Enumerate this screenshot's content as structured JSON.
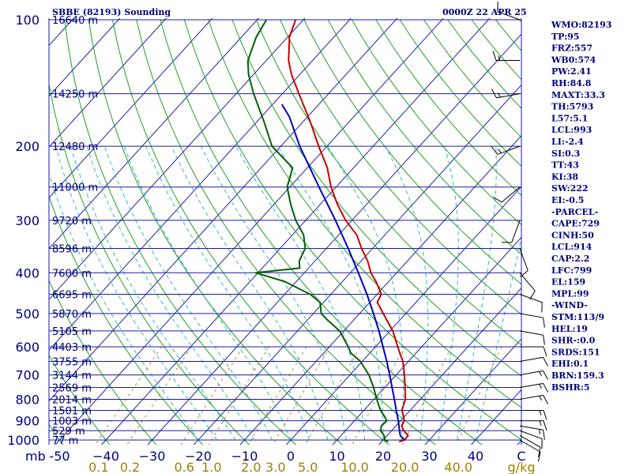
{
  "header": {
    "left_title": "SBBE (82193) Sounding",
    "right_title": "0000Z 22 APR 25"
  },
  "colors": {
    "background": "#ffffff",
    "axis_text": "#00007a",
    "isobars": "#1c1ca0",
    "isotherms": "#2020a8",
    "dry_adiabats": "#20a020",
    "moist_adiabats": "#30b8b8",
    "mixing_ratio": "#b08820",
    "temperature": "#c80000",
    "dewpoint": "#006000",
    "parcel": "#0000c0",
    "wind_barbs": "#000000"
  },
  "chart_data": {
    "type": "line",
    "x_unit_label": "C",
    "y_unit_label": "mb",
    "pressure_levels": [
      100,
      200,
      300,
      400,
      500,
      600,
      700,
      800,
      900,
      1000
    ],
    "temperature_ticks": [
      -50,
      -40,
      -30,
      -20,
      -10,
      0,
      10,
      20,
      30,
      40
    ],
    "temperature_tick_labels": [
      "-50",
      "−40",
      "−30",
      "−20",
      "−10",
      "0",
      "10",
      "20",
      "30",
      "40"
    ],
    "mixing_ratio_unit": "g/kg",
    "mixing_ratio_values": [
      0.1,
      0.2,
      0.6,
      1.0,
      2.0,
      3.0,
      5.0,
      10.0,
      20.0,
      40.0
    ],
    "mixing_ratio_labels": [
      "0.1",
      "0.2",
      "0.6",
      "1.0",
      "2.0",
      "3.0",
      "5.0",
      "10.0",
      "20.0",
      "40.0"
    ],
    "height_labels": [
      {
        "p": 100,
        "text": "16640 m"
      },
      {
        "p": 150,
        "text": "14250 m"
      },
      {
        "p": 200,
        "text": "12480 m"
      },
      {
        "p": 250,
        "text": "11000 m"
      },
      {
        "p": 300,
        "text": "9720 m"
      },
      {
        "p": 350,
        "text": "8596 m"
      },
      {
        "p": 400,
        "text": "7600 m"
      },
      {
        "p": 450,
        "text": "6695 m"
      },
      {
        "p": 500,
        "text": "5870 m"
      },
      {
        "p": 550,
        "text": "5105 m"
      },
      {
        "p": 600,
        "text": "4403 m"
      },
      {
        "p": 650,
        "text": "3755 m"
      },
      {
        "p": 700,
        "text": "3144 m"
      },
      {
        "p": 750,
        "text": "2569 m"
      },
      {
        "p": 800,
        "text": "2014 m"
      },
      {
        "p": 850,
        "text": "1501 m"
      },
      {
        "p": 900,
        "text": "1003 m"
      },
      {
        "p": 950,
        "text": "529 m"
      },
      {
        "p": 1000,
        "text": "77 m"
      }
    ],
    "series": [
      {
        "key": "temperature",
        "points": [
          [
            1009,
            23.8
          ],
          [
            1000,
            24.6
          ],
          [
            975,
            24.5
          ],
          [
            950,
            22.6
          ],
          [
            925,
            21.2
          ],
          [
            900,
            20.8
          ],
          [
            875,
            19.6
          ],
          [
            850,
            18.2
          ],
          [
            800,
            16.8
          ],
          [
            750,
            14.4
          ],
          [
            700,
            11.8
          ],
          [
            650,
            8.8
          ],
          [
            620,
            6.4
          ],
          [
            600,
            4.8
          ],
          [
            550,
            0.6
          ],
          [
            500,
            -4.9
          ],
          [
            470,
            -8.4
          ],
          [
            450,
            -9.1
          ],
          [
            420,
            -12.7
          ],
          [
            400,
            -15.6
          ],
          [
            375,
            -18.6
          ],
          [
            350,
            -22.4
          ],
          [
            325,
            -26.1
          ],
          [
            300,
            -31.4
          ],
          [
            275,
            -36.3
          ],
          [
            250,
            -41.1
          ],
          [
            225,
            -45.7
          ],
          [
            200,
            -51.8
          ],
          [
            175,
            -58.4
          ],
          [
            150,
            -66.4
          ],
          [
            135,
            -71.8
          ],
          [
            125,
            -75.2
          ],
          [
            110,
            -79.6
          ],
          [
            100,
            -81.7
          ]
        ]
      },
      {
        "key": "dewpoint",
        "points": [
          [
            1009,
            21.4
          ],
          [
            1000,
            20.4
          ],
          [
            975,
            19.3
          ],
          [
            950,
            17.6
          ],
          [
            925,
            16.8
          ],
          [
            900,
            17.0
          ],
          [
            875,
            15.4
          ],
          [
            850,
            13.6
          ],
          [
            800,
            10.6
          ],
          [
            750,
            7.6
          ],
          [
            700,
            4.1
          ],
          [
            650,
            -0.4
          ],
          [
            620,
            -4.2
          ],
          [
            600,
            -5.9
          ],
          [
            550,
            -10.9
          ],
          [
            520,
            -15.4
          ],
          [
            500,
            -18.3
          ],
          [
            470,
            -20.8
          ],
          [
            450,
            -24.5
          ],
          [
            420,
            -32.4
          ],
          [
            400,
            -40.5
          ],
          [
            390,
            -31.9
          ],
          [
            375,
            -33.4
          ],
          [
            350,
            -34.6
          ],
          [
            325,
            -37.6
          ],
          [
            300,
            -42.2
          ],
          [
            275,
            -46.4
          ],
          [
            250,
            -50.6
          ],
          [
            225,
            -53.2
          ],
          [
            200,
            -61.9
          ],
          [
            175,
            -68.4
          ],
          [
            150,
            -76.2
          ],
          [
            135,
            -81.1
          ],
          [
            125,
            -84.0
          ],
          [
            110,
            -86.8
          ],
          [
            100,
            -88.0
          ]
        ]
      },
      {
        "key": "parcel",
        "points": [
          [
            1000,
            24.6
          ],
          [
            975,
            22.8
          ],
          [
            950,
            21.7
          ],
          [
            925,
            20.6
          ],
          [
            900,
            19.5
          ],
          [
            850,
            17.0
          ],
          [
            800,
            14.4
          ],
          [
            750,
            11.6
          ],
          [
            700,
            8.6
          ],
          [
            650,
            5.3
          ],
          [
            600,
            1.6
          ],
          [
            550,
            -2.4
          ],
          [
            500,
            -7.0
          ],
          [
            450,
            -12.2
          ],
          [
            400,
            -18.3
          ],
          [
            350,
            -25.3
          ],
          [
            300,
            -33.6
          ],
          [
            250,
            -43.7
          ],
          [
            200,
            -55.9
          ],
          [
            170,
            -64.0
          ],
          [
            159,
            -68.0
          ]
        ]
      }
    ],
    "wind_barbs": [
      {
        "p": 1000,
        "dir": 120,
        "spd": 10
      },
      {
        "p": 975,
        "dir": 120,
        "spd": 10
      },
      {
        "p": 950,
        "dir": 110,
        "spd": 10
      },
      {
        "p": 925,
        "dir": 100,
        "spd": 15
      },
      {
        "p": 900,
        "dir": 90,
        "spd": 15
      },
      {
        "p": 850,
        "dir": 90,
        "spd": 15
      },
      {
        "p": 800,
        "dir": 80,
        "spd": 15
      },
      {
        "p": 750,
        "dir": 80,
        "spd": 15
      },
      {
        "p": 700,
        "dir": 80,
        "spd": 15
      },
      {
        "p": 650,
        "dir": 80,
        "spd": 10
      },
      {
        "p": 600,
        "dir": 90,
        "spd": 10
      },
      {
        "p": 550,
        "dir": 100,
        "spd": 10
      },
      {
        "p": 500,
        "dir": 100,
        "spd": 10
      },
      {
        "p": 450,
        "dir": 110,
        "spd": 10
      },
      {
        "p": 400,
        "dir": 140,
        "spd": 10
      },
      {
        "p": 350,
        "dir": 160,
        "spd": 10
      },
      {
        "p": 300,
        "dir": 200,
        "spd": 10
      },
      {
        "p": 250,
        "dir": 230,
        "spd": 10
      },
      {
        "p": 200,
        "dir": 250,
        "spd": 15
      },
      {
        "p": 150,
        "dir": 260,
        "spd": 15
      },
      {
        "p": 125,
        "dir": 270,
        "spd": 15
      },
      {
        "p": 100,
        "dir": 290,
        "spd": 10
      }
    ]
  },
  "indices": [
    "WMO:82193",
    "TP:95",
    "FRZ:557",
    "WB0:574",
    "PW:2.41",
    "RH:84.8",
    "MAXT:33.3",
    "TH:5793",
    "L57:5.1",
    "LCL:993",
    "LI:-2.4",
    "SI:0.3",
    "TT:43",
    "KI:38",
    "SW:222",
    "EI:-0.5",
    "-PARCEL-",
    "CAPE:729",
    "CINH:50",
    "LCL:914",
    "CAP:2.2",
    "LFC:799",
    "EL:159",
    "MPL:99",
    "-WIND-",
    "STM:113/9",
    "HEL:19",
    "SHR-:0.0",
    "SRDS:151",
    "EHI:0.1",
    "BRN:159.3",
    "BSHR:5"
  ]
}
